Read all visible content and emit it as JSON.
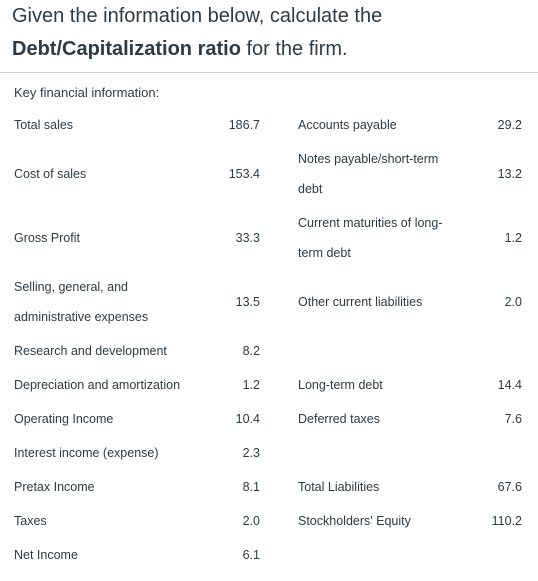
{
  "question": {
    "prefix": "Given the information below, calculate the",
    "emphasis": "Debt/Capitalization ratio",
    "suffix": " for the firm."
  },
  "table": {
    "caption": "Key financial information:",
    "income_statement": [
      {
        "label": "Total sales",
        "value": "186.7"
      },
      {
        "label": "Cost of sales",
        "value": "153.4"
      },
      {
        "label": "Gross Profit",
        "value": "33.3"
      },
      {
        "label_lines": [
          "Selling, general, and",
          "administrative expenses"
        ],
        "value": "13.5"
      },
      {
        "label": "Research and development",
        "value": "8.2"
      },
      {
        "label": "Depreciation and amortization",
        "value": "1.2"
      },
      {
        "label": "Operating Income",
        "value": "10.4"
      },
      {
        "label": "Interest income (expense)",
        "value": "2.3"
      },
      {
        "label": "Pretax Income",
        "value": "8.1"
      },
      {
        "label": "Taxes",
        "value": "2.0"
      },
      {
        "label": "Net Income",
        "value": "6.1"
      }
    ],
    "balance_sheet": [
      {
        "label": "Accounts payable",
        "value": "29.2"
      },
      {
        "label_lines": [
          "Notes payable/short-term",
          "debt"
        ],
        "value": "13.2"
      },
      {
        "label_lines": [
          "Current maturities of long-",
          "term debt"
        ],
        "value": "1.2"
      },
      {
        "label": "Other current liabilities",
        "value": "2.0"
      },
      {
        "label": "Long-term debt",
        "value": "14.4"
      },
      {
        "label": "Deferred taxes",
        "value": "7.6"
      },
      {
        "label": "Total Liabilities",
        "value": "67.6"
      },
      {
        "label": "Stockholders' Equity",
        "value": "110.2"
      }
    ]
  }
}
